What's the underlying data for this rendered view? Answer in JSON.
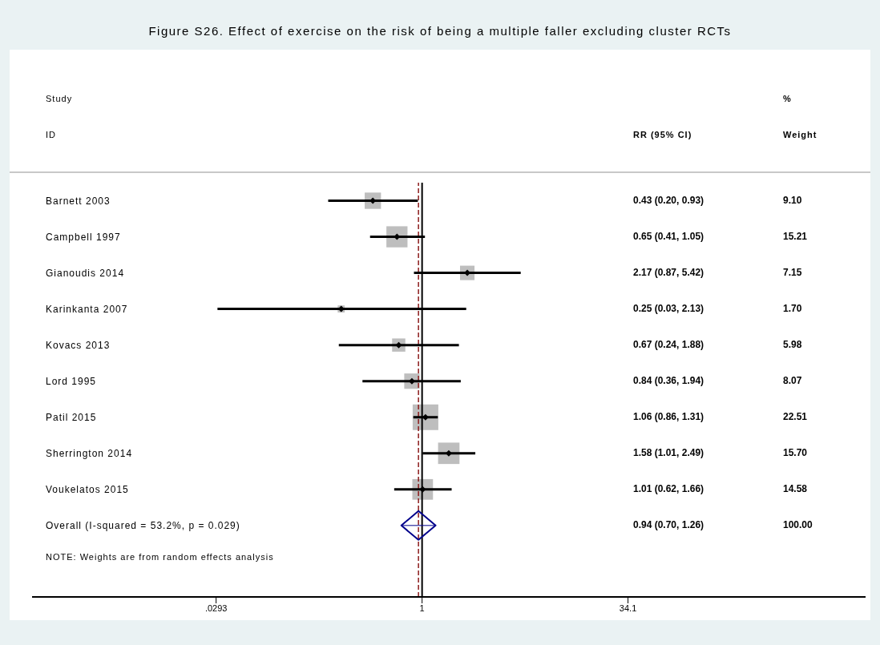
{
  "chart_data": {
    "type": "scatter",
    "orientation": "horizontal",
    "title": "Figure S26. Effect of exercise on the risk of being a multiple faller excluding cluster RCTs",
    "categories": [
      "Barnett 2003",
      "Campbell 1997",
      "Gianoudis 2014",
      "Karinkanta 2007",
      "Kovacs 2013",
      "Lord 1995",
      "Patil 2015",
      "Sherrington 2014",
      "Voukelatos 2015",
      "Overall  (I-squared = 53.2%, p = 0.029)"
    ],
    "log": "x",
    "xlim": [
      0.00125,
      2000
    ],
    "xticks": [
      {
        "value": 0.0293,
        "label": ".0293"
      },
      1,
      34.1
    ],
    "ref_lines": [
      {
        "axis": "x",
        "value": 1,
        "color": "#000000",
        "line_style": "solid"
      },
      {
        "axis": "x",
        "value": 0.94,
        "color": "#8b1a1a",
        "line_style": "dashed"
      }
    ],
    "series": [
      {
        "type": "bubble",
        "marker": "square",
        "color": "#bebebe",
        "values": [
          0.43,
          0.65,
          2.17,
          0.25,
          0.67,
          0.84,
          1.06,
          1.58,
          1.01,
          null
        ],
        "sizes": [
          0.404,
          0.676,
          0.318,
          0.0755,
          0.266,
          0.359,
          1,
          0.697,
          0.648,
          null
        ]
      },
      {
        "marker": "diamond",
        "color": "#000000",
        "values": [
          0.43,
          0.65,
          2.17,
          0.25,
          0.67,
          0.84,
          1.06,
          1.58,
          1.01,
          null
        ],
        "errors": [
          [
            0.2,
            0.93
          ],
          [
            0.41,
            1.05
          ],
          [
            0.87,
            5.42
          ],
          [
            0.03,
            2.13
          ],
          [
            0.24,
            1.88
          ],
          [
            0.36,
            1.94
          ],
          [
            0.86,
            1.31
          ],
          [
            1.01,
            2.49
          ],
          [
            0.62,
            1.66
          ],
          null
        ]
      },
      {
        "marker": "diamond",
        "color": "#00008b",
        "values": [
          null,
          null,
          null,
          null,
          null,
          null,
          null,
          null,
          null,
          0.94
        ],
        "errors": [
          null,
          null,
          null,
          null,
          null,
          null,
          null,
          null,
          null,
          [
            0.7,
            1.26
          ]
        ]
      }
    ],
    "annotations": [
      "Study",
      "ID",
      "RR (95% CI)",
      "%",
      "Weight",
      "0.43 (0.20, 0.93)",
      "0.65 (0.41, 1.05)",
      "2.17 (0.87, 5.42)",
      "0.25 (0.03, 2.13)",
      "0.67 (0.24, 1.88)",
      "0.84 (0.36, 1.94)",
      "1.06 (0.86, 1.31)",
      "1.58 (1.01, 2.49)",
      "1.01 (0.62, 1.66)",
      "0.94 (0.70, 1.26)",
      "9.10",
      "15.21",
      "7.15",
      "1.70",
      "5.98",
      "8.07",
      "22.51",
      "15.70",
      "14.58",
      "100.00",
      "NOTE: Weights are from random effects analysis"
    ]
  }
}
